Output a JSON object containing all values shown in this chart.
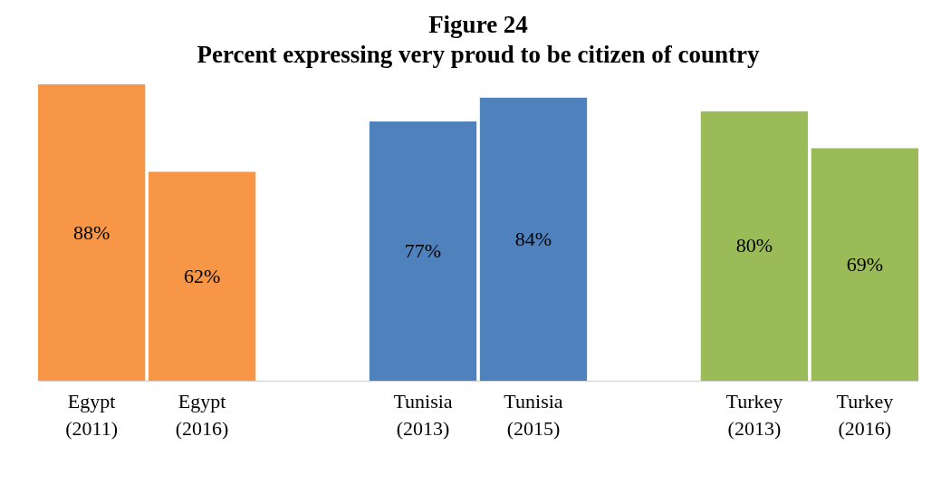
{
  "chart_data": {
    "type": "bar",
    "title": "Figure 24",
    "subtitle": "Percent expressing very proud to be citizen of country",
    "categories": [
      "Egypt (2011)",
      "Egypt (2016)",
      null,
      "Tunisia (2013)",
      "Tunisia (2015)",
      null,
      "Turkey (2013)",
      "Turkey (2016)"
    ],
    "values": [
      88,
      62,
      null,
      77,
      84,
      null,
      80,
      69
    ],
    "value_labels": [
      "88%",
      "62%",
      null,
      "77%",
      "84%",
      null,
      "80%",
      "69%"
    ],
    "colors": [
      "#f79646",
      "#f79646",
      null,
      "#4f81bd",
      "#4f81bd",
      null,
      "#9bbb59",
      "#9bbb59"
    ]
  }
}
